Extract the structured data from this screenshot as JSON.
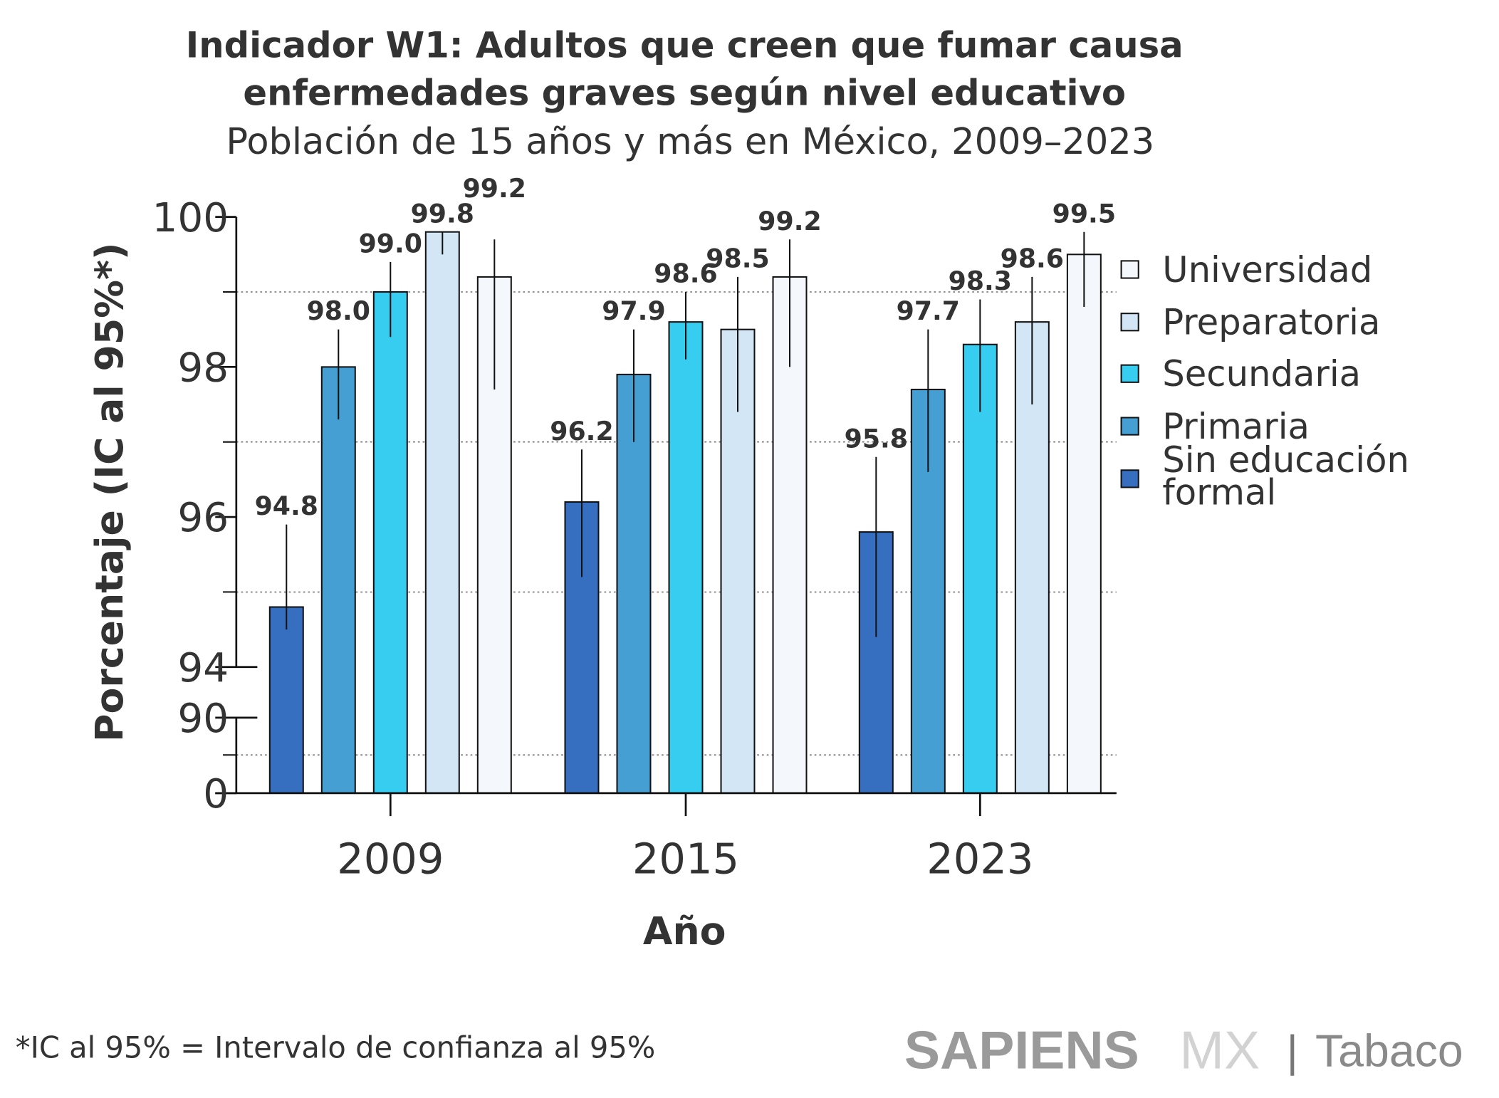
{
  "chart_data": {
    "type": "bar",
    "title": "Indicador W1: Adultos que creen que fumar causa enfermedades graves según nivel educativo",
    "title_lines": [
      "Indicador W1: Adultos que creen que fumar causa",
      "enfermedades graves según nivel educativo"
    ],
    "subtitle": "Población de 15 años y más en México, 2009–2023",
    "xlabel": "Año",
    "ylabel": "Porcentaje (IC al 95%*)",
    "categories": [
      "2009",
      "2015",
      "2023"
    ],
    "y_ticks": [
      "100",
      "98",
      "96",
      "94",
      "90",
      "0"
    ],
    "y_axis": "broken: 0–90 compressed, 94–100 expanded",
    "ylim": [
      0,
      100
    ],
    "grid": "dotted horizontal at 95, 97, 99",
    "legend_position": "right",
    "series": [
      {
        "name": "Sin educación formal",
        "legend_lines": [
          "Sin educación",
          "formal"
        ],
        "color": "#376fc0",
        "values": [
          94.8,
          96.2,
          95.8
        ],
        "ci_low": [
          94.5,
          95.2,
          94.4
        ],
        "ci_high": [
          95.9,
          96.9,
          96.8
        ]
      },
      {
        "name": "Primaria",
        "color": "#469fd2",
        "values": [
          98.0,
          97.9,
          97.7
        ],
        "ci_low": [
          97.3,
          97.0,
          96.6
        ],
        "ci_high": [
          98.5,
          98.5,
          98.5
        ]
      },
      {
        "name": "Secundaria",
        "color": "#37cdf0",
        "values": [
          99.0,
          98.6,
          98.3
        ],
        "ci_low": [
          98.4,
          98.1,
          97.4
        ],
        "ci_high": [
          99.4,
          99.0,
          98.9
        ]
      },
      {
        "name": "Preparatoria",
        "color": "#d2e6f5",
        "values": [
          99.8,
          98.5,
          98.6
        ],
        "ci_low": [
          99.5,
          97.4,
          97.5
        ],
        "ci_high": [
          99.8,
          99.2,
          99.2
        ]
      },
      {
        "name": "Universidad",
        "color": "#f4f8fd",
        "values": [
          99.2,
          99.2,
          99.5
        ],
        "ci_low": [
          97.7,
          98.0,
          98.8
        ],
        "ci_high": [
          99.7,
          99.7,
          99.8
        ]
      }
    ],
    "value_labels": [
      [
        "94.8",
        "96.2",
        "95.8"
      ],
      [
        "98.0",
        "97.9",
        "97.7"
      ],
      [
        "99.0",
        "98.6",
        "98.3"
      ],
      [
        "99.8",
        "98.5",
        "98.6"
      ],
      [
        "99.2",
        "99.2",
        "99.5"
      ]
    ]
  },
  "footnote": "*IC al 95% = Intervalo de confianza al 95%",
  "logo": {
    "brand": "SAPIENS",
    "region": "MX",
    "separator": "|",
    "section": "Tabaco"
  }
}
